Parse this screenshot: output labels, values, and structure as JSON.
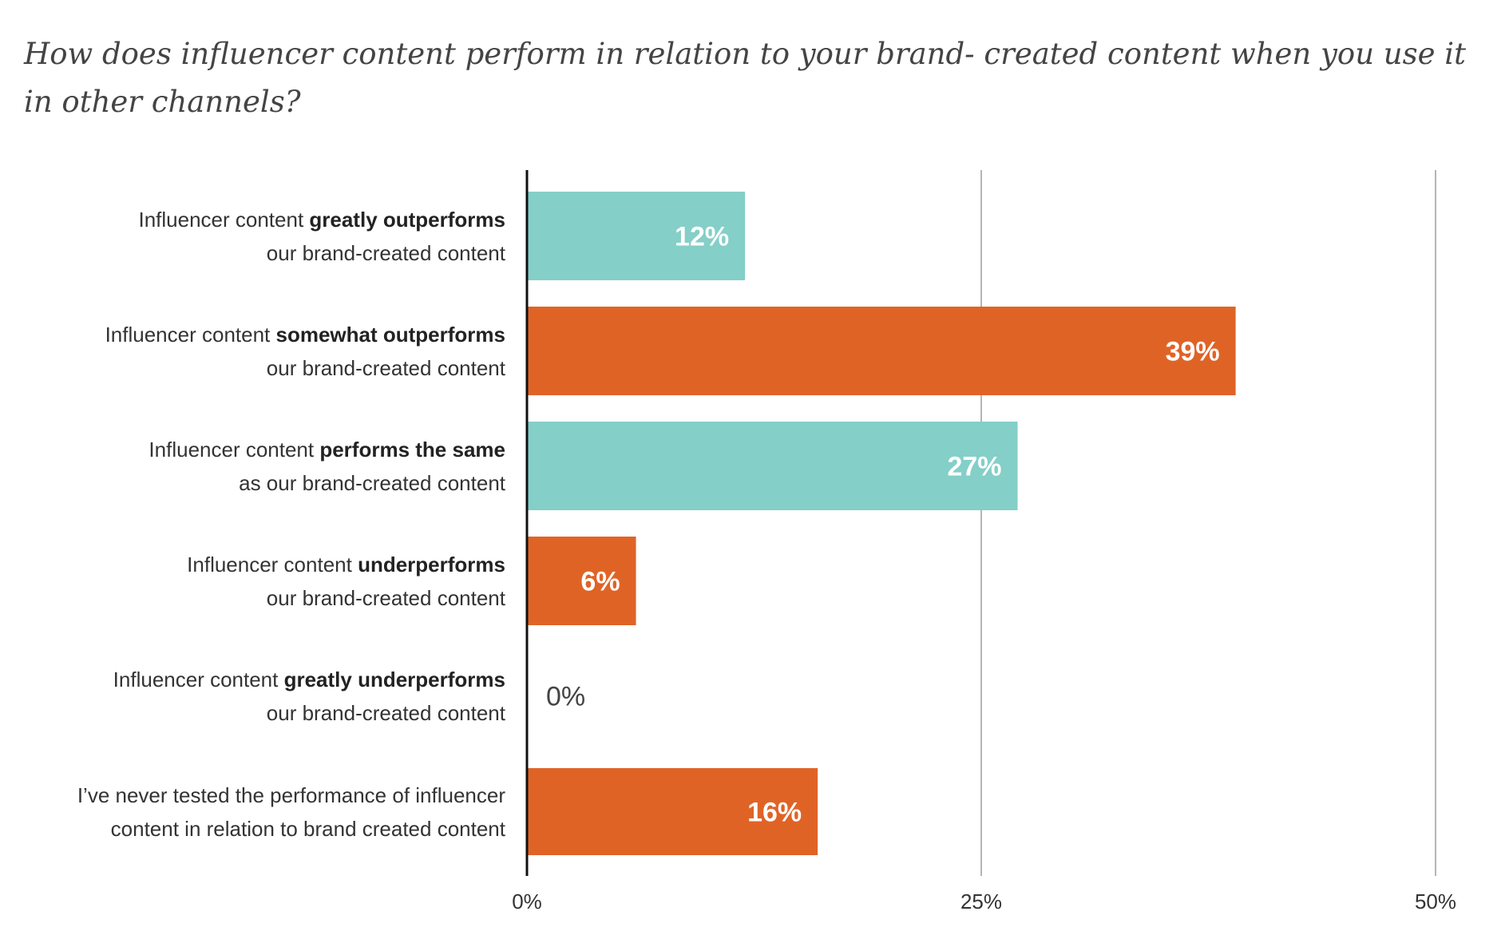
{
  "chart_data": {
    "type": "bar",
    "orientation": "horizontal",
    "title": "How does influencer content perform in relation to your brand- created content when you use it in other channels?",
    "categories": [
      {
        "pre": "Influencer content ",
        "bold": "greatly outperforms",
        "line2": "our brand-created content"
      },
      {
        "pre": "Influencer content ",
        "bold": "somewhat outperforms",
        "line2": "our brand-created content"
      },
      {
        "pre": "Influencer content ",
        "bold": "performs the same",
        "line2": "as our brand-created content"
      },
      {
        "pre": "Influencer content ",
        "bold": "underperforms",
        "line2": "our brand-created content"
      },
      {
        "pre": "Influencer content ",
        "bold": "greatly underperforms",
        "line2": "our brand-created content"
      },
      {
        "pre": "I’ve never tested the performance of influencer",
        "bold": "",
        "line2": "content in relation to brand created content"
      }
    ],
    "values": [
      12,
      39,
      27,
      6,
      0,
      16
    ],
    "value_labels": [
      "12%",
      "39%",
      "27%",
      "6%",
      "0%",
      "16%"
    ],
    "bar_colors": [
      "#84cfc8",
      "#e06326",
      "#84cfc8",
      "#e06326",
      "#e06326",
      "#e06326"
    ],
    "xlim": [
      0,
      50
    ],
    "xticks": [
      0,
      25,
      50
    ],
    "xtick_labels": [
      "0%",
      "25%",
      "50%"
    ],
    "grid": true,
    "xlabel": "",
    "ylabel": ""
  }
}
